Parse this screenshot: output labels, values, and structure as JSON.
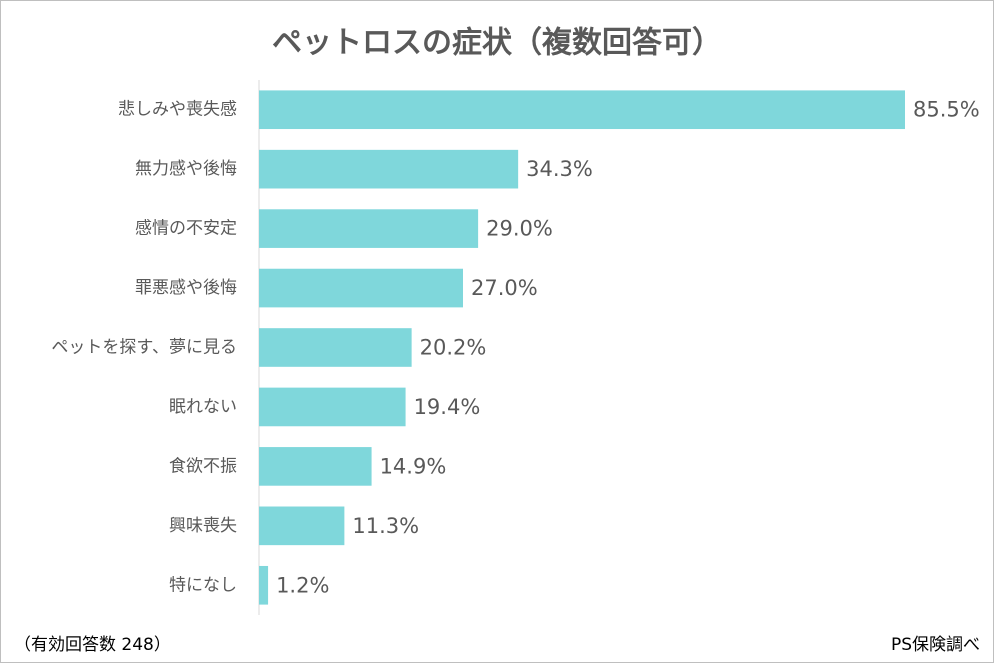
{
  "chart_data": {
    "type": "barh",
    "title": "ペットロスの症状（複数回答可）",
    "categories": [
      "悲しみや喪失感",
      "無力感や後悔",
      "感情の不安定",
      "罪悪感や後悔",
      "ペットを探す、夢に見る",
      "眠れない",
      "食欲不振",
      "興味喪失",
      "特になし"
    ],
    "values": [
      85.5,
      34.3,
      29.0,
      27.0,
      20.2,
      19.4,
      14.9,
      11.3,
      1.2
    ],
    "value_labels": [
      "85.5%",
      "34.3%",
      "29.0%",
      "27.0%",
      "20.2%",
      "19.4%",
      "14.9%",
      "11.3%",
      "1.2%"
    ],
    "color": "#7fd7db",
    "xlim": [
      0,
      90
    ],
    "note": "（有効回答数 248）",
    "source": "PS保険調べ"
  }
}
